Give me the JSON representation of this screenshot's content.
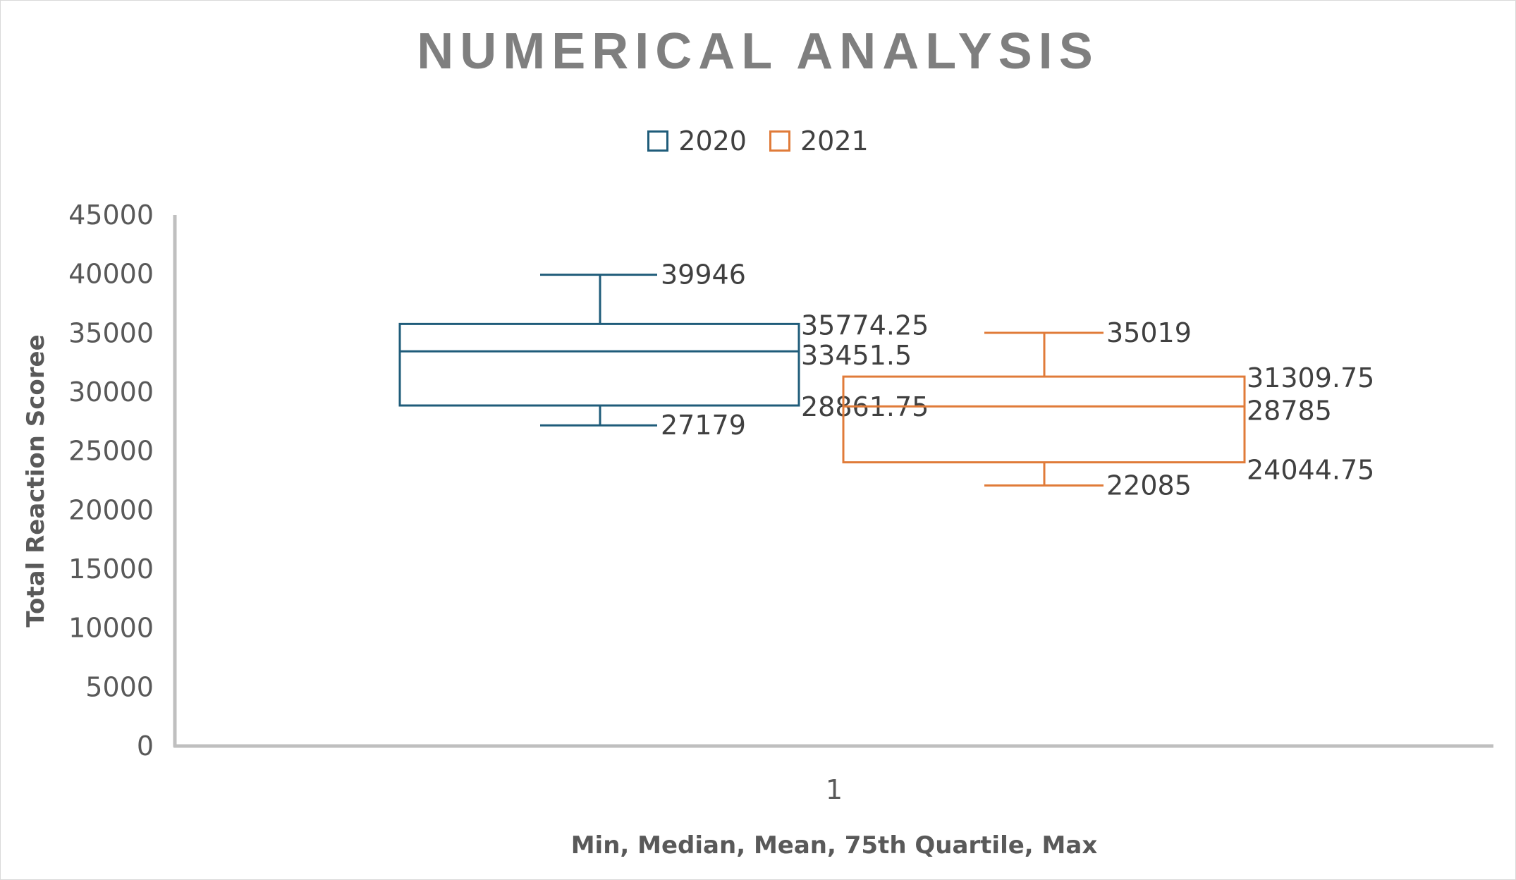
{
  "chart_data": {
    "type": "box",
    "title": "NUMERICAL ANALYSIS",
    "xlabel": "Min, Median, Mean, 75th Quartile, Max",
    "ylabel": "Total Reaction Scoree",
    "categories": [
      "1"
    ],
    "ylim": [
      0,
      45000
    ],
    "yticks": [
      0,
      5000,
      10000,
      15000,
      20000,
      25000,
      30000,
      35000,
      40000,
      45000
    ],
    "grid": false,
    "legend_position": "top",
    "series": [
      {
        "name": "2020",
        "color": "#1f5c7a",
        "min": 27179,
        "q1": 28861.75,
        "median": 33451.5,
        "q3": 35774.25,
        "max": 39946,
        "labels": {
          "max": "39946",
          "q3": "35774.25",
          "median": "33451.5",
          "q1": "28861.75",
          "min": "27179"
        }
      },
      {
        "name": "2021",
        "color": "#e07b39",
        "min": 22085,
        "q1": 24044.75,
        "median": 28785,
        "q3": 31309.75,
        "max": 35019,
        "labels": {
          "max": "35019",
          "q3": "31309.75",
          "median": "28785",
          "q1": "24044.75",
          "min": "22085"
        }
      }
    ]
  }
}
